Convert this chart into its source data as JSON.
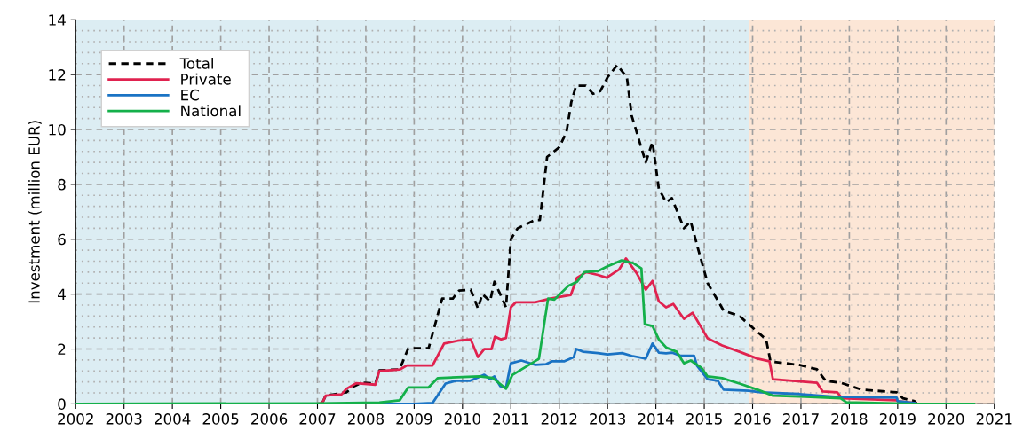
{
  "chart_data": {
    "type": "line",
    "ylabel": "Investment (million EUR)",
    "xlim": [
      2002,
      2021
    ],
    "xticks": [
      2002,
      2003,
      2004,
      2005,
      2006,
      2007,
      2008,
      2009,
      2010,
      2011,
      2012,
      2013,
      2014,
      2015,
      2016,
      2017,
      2018,
      2019,
      2020,
      2021
    ],
    "ylim": [
      0,
      14
    ],
    "yticks": [
      0,
      2,
      4,
      6,
      8,
      10,
      12,
      14
    ],
    "grid": true,
    "legend": "top left",
    "bands": [
      {
        "axis": "x",
        "from": 2002,
        "to": 2015.92,
        "color": "#dcedf3"
      },
      {
        "axis": "x",
        "from": 2015.92,
        "to": 2021,
        "color": "#fce6d6"
      }
    ],
    "series": [
      {
        "name": "Total",
        "color": "#000000",
        "line_style": "dashed",
        "x": [
          2002,
          2007.0,
          2007.1,
          2007.17,
          2007.6,
          2007.73,
          2007.91,
          2008.2,
          2008.28,
          2008.7,
          2008.88,
          2009.3,
          2009.58,
          2009.8,
          2009.93,
          2010.17,
          2010.32,
          2010.41,
          2010.57,
          2010.66,
          2010.78,
          2010.9,
          2011.0,
          2011.14,
          2011.5,
          2011.6,
          2011.75,
          2012.0,
          2012.15,
          2012.25,
          2012.35,
          2012.55,
          2012.7,
          2012.85,
          2013.0,
          2013.2,
          2013.4,
          2013.5,
          2013.79,
          2013.93,
          2014.06,
          2014.21,
          2014.33,
          2014.58,
          2014.72,
          2014.88,
          2015.07,
          2015.4,
          2015.73,
          2015.92,
          2016.28,
          2016.37,
          2016.96,
          2017.33,
          2017.51,
          2017.82,
          2018.25,
          2018.98,
          2019.11,
          2019.35,
          2019.4
        ],
        "values": [
          0,
          0,
          0.03,
          0.3,
          0.42,
          0.62,
          0.77,
          0.74,
          1.22,
          1.26,
          2.03,
          2.03,
          3.84,
          3.84,
          4.13,
          4.16,
          3.48,
          4.0,
          3.74,
          4.45,
          4.0,
          3.52,
          6.0,
          6.4,
          6.7,
          6.7,
          9.0,
          9.35,
          9.9,
          11.0,
          11.6,
          11.6,
          11.3,
          11.4,
          11.9,
          12.35,
          11.9,
          10.5,
          8.8,
          9.55,
          7.84,
          7.35,
          7.5,
          6.4,
          6.65,
          5.6,
          4.4,
          3.4,
          3.2,
          2.9,
          2.35,
          1.55,
          1.42,
          1.26,
          0.84,
          0.77,
          0.52,
          0.42,
          0.2,
          0.1,
          0
        ]
      },
      {
        "name": "Private",
        "color": "#e0224f",
        "x": [
          2002,
          2007.0,
          2007.1,
          2007.17,
          2007.5,
          2007.6,
          2007.8,
          2008.2,
          2008.28,
          2008.7,
          2008.85,
          2009.38,
          2009.62,
          2009.9,
          2010.17,
          2010.32,
          2010.45,
          2010.6,
          2010.67,
          2010.8,
          2010.9,
          2011.0,
          2011.1,
          2011.5,
          2011.82,
          2012.24,
          2012.37,
          2012.56,
          2012.8,
          2012.98,
          2013.24,
          2013.38,
          2013.6,
          2013.79,
          2013.93,
          2014.06,
          2014.21,
          2014.36,
          2014.58,
          2014.76,
          2014.91,
          2015.07,
          2015.37,
          2015.73,
          2016.1,
          2016.35,
          2016.42,
          2017.33,
          2017.45,
          2017.75,
          2017.85,
          2018.98,
          2019.0,
          2019.35
        ],
        "values": [
          0,
          0,
          0.03,
          0.3,
          0.35,
          0.55,
          0.75,
          0.7,
          1.2,
          1.25,
          1.4,
          1.4,
          2.2,
          2.3,
          2.35,
          1.71,
          2.0,
          2.0,
          2.45,
          2.35,
          2.4,
          3.52,
          3.7,
          3.7,
          3.84,
          3.97,
          4.6,
          4.8,
          4.7,
          4.6,
          4.9,
          5.3,
          4.77,
          4.16,
          4.48,
          3.74,
          3.52,
          3.64,
          3.1,
          3.32,
          2.87,
          2.39,
          2.13,
          1.9,
          1.65,
          1.55,
          0.9,
          0.77,
          0.45,
          0.42,
          0.2,
          0.13,
          0.1,
          0.03
        ]
      },
      {
        "name": "EC",
        "color": "#1a73c4",
        "x": [
          2002,
          2009.0,
          2009.38,
          2009.65,
          2009.86,
          2010.15,
          2010.45,
          2010.57,
          2010.66,
          2010.78,
          2010.9,
          2011.0,
          2011.22,
          2011.51,
          2011.73,
          2011.85,
          2012.1,
          2012.3,
          2012.35,
          2012.5,
          2012.8,
          2013.0,
          2013.3,
          2013.5,
          2013.79,
          2013.93,
          2014.06,
          2014.21,
          2014.33,
          2014.52,
          2014.79,
          2014.85,
          2015.07,
          2015.28,
          2015.4,
          2015.92,
          2016.17,
          2016.96,
          2017.7,
          2018.98,
          2019.0,
          2019.35
        ],
        "values": [
          0,
          0,
          0.03,
          0.74,
          0.84,
          0.84,
          1.06,
          0.9,
          1.0,
          0.65,
          0.6,
          1.48,
          1.58,
          1.42,
          1.45,
          1.55,
          1.55,
          1.7,
          2.0,
          1.9,
          1.85,
          1.8,
          1.85,
          1.75,
          1.65,
          2.2,
          1.87,
          1.84,
          1.87,
          1.75,
          1.75,
          1.39,
          0.9,
          0.84,
          0.52,
          0.48,
          0.42,
          0.36,
          0.26,
          0.23,
          0.1,
          0.03
        ]
      },
      {
        "name": "National",
        "color": "#14b04a",
        "x": [
          2002,
          2007.0,
          2008.28,
          2008.7,
          2008.88,
          2009.3,
          2009.49,
          2010.35,
          2010.62,
          2010.9,
          2011.03,
          2011.58,
          2011.77,
          2011.9,
          2012.19,
          2012.37,
          2012.52,
          2012.8,
          2012.98,
          2013.29,
          2013.53,
          2013.7,
          2013.77,
          2013.93,
          2014.06,
          2014.21,
          2014.43,
          2014.58,
          2014.72,
          2014.94,
          2015.07,
          2015.37,
          2015.73,
          2016.1,
          2016.42,
          2017.09,
          2017.82,
          2017.94,
          2019.35,
          2020.58
        ],
        "values": [
          0,
          0.02,
          0.05,
          0.13,
          0.6,
          0.6,
          0.94,
          1.0,
          0.95,
          0.55,
          1.05,
          1.64,
          3.84,
          3.8,
          4.3,
          4.45,
          4.8,
          4.84,
          5.0,
          5.23,
          5.13,
          4.94,
          2.9,
          2.84,
          2.35,
          2.06,
          1.9,
          1.48,
          1.58,
          1.32,
          1.0,
          0.94,
          0.74,
          0.52,
          0.3,
          0.26,
          0.2,
          0.06,
          0,
          0
        ]
      }
    ]
  }
}
